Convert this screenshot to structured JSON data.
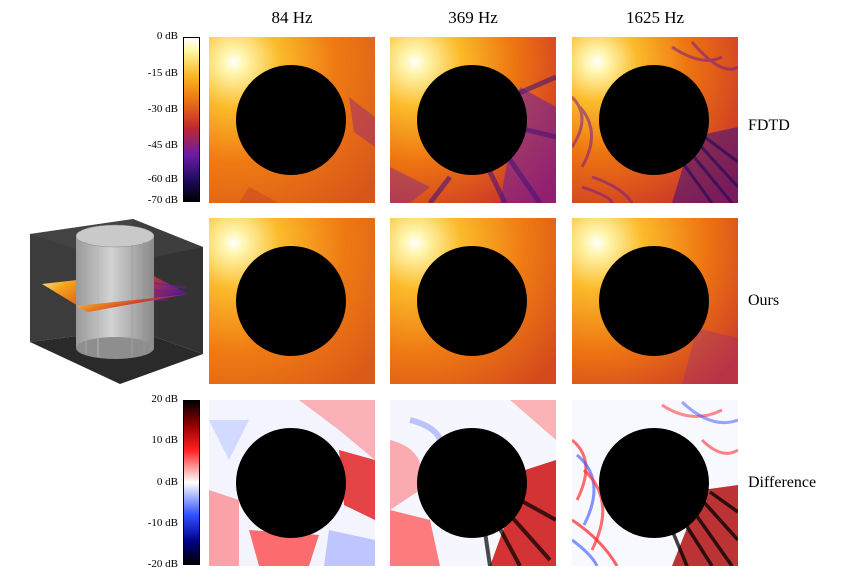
{
  "columns": [
    "84 Hz",
    "369 Hz",
    "1625 Hz"
  ],
  "rows": [
    "FDTD",
    "Ours",
    "Difference"
  ],
  "colorbar_top": {
    "ticks": [
      "0 dB",
      "-15 dB",
      "-30 dB",
      "-45 dB",
      "-60 dB",
      "-70 dB"
    ],
    "values": [
      0,
      -15,
      -30,
      -45,
      -60,
      -70
    ],
    "range": [
      -70,
      0
    ],
    "colors": [
      "#000000",
      "#1a0a5a",
      "#6a1ba8",
      "#c2282d",
      "#ee7411",
      "#fbbb2a",
      "#fff8a0",
      "#ffffff"
    ]
  },
  "colorbar_bottom": {
    "ticks": [
      "20 dB",
      "10 dB",
      "0 dB",
      "-10 dB",
      "-20 dB"
    ],
    "values": [
      20,
      10,
      0,
      -10,
      -20
    ],
    "range": [
      -20,
      20
    ],
    "colors": [
      "#000000",
      "#8b0000",
      "#ff2020",
      "#ffffff",
      "#3050ff",
      "#00008b",
      "#000000"
    ]
  }
}
